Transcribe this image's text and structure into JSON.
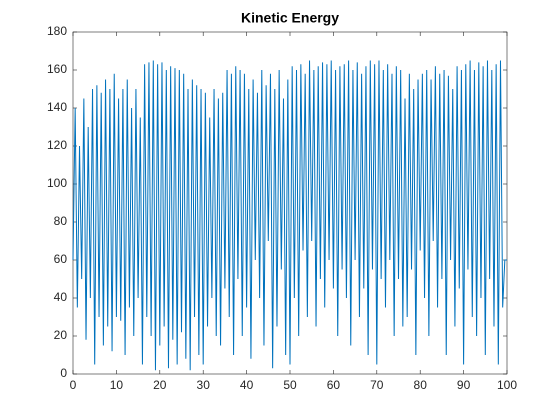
{
  "chart_data": {
    "type": "line",
    "title": "Kinetic Energy",
    "x": [
      0,
      0.5,
      1,
      1.5,
      2,
      2.5,
      3,
      3.5,
      4,
      4.5,
      5,
      5.5,
      6,
      6.5,
      7,
      7.5,
      8,
      8.5,
      9,
      9.5,
      10,
      10.5,
      11,
      11.5,
      12,
      12.5,
      13,
      13.5,
      14,
      14.5,
      15,
      15.5,
      16,
      16.5,
      17,
      17.5,
      18,
      18.5,
      19,
      19.5,
      20,
      20.5,
      21,
      21.5,
      22,
      22.5,
      23,
      23.5,
      24,
      24.5,
      25,
      25.5,
      26,
      26.5,
      27,
      27.5,
      28,
      28.5,
      29,
      29.5,
      30,
      30.5,
      31,
      31.5,
      32,
      32.5,
      33,
      33.5,
      34,
      34.5,
      35,
      35.5,
      36,
      36.5,
      37,
      37.5,
      38,
      38.5,
      39,
      39.5,
      40,
      40.5,
      41,
      41.5,
      42,
      42.5,
      43,
      43.5,
      44,
      44.5,
      45,
      45.5,
      46,
      46.5,
      47,
      47.5,
      48,
      48.5,
      49,
      49.5,
      50,
      50.5,
      51,
      51.5,
      52,
      52.5,
      53,
      53.5,
      54,
      54.5,
      55,
      55.5,
      56,
      56.5,
      57,
      57.5,
      58,
      58.5,
      59,
      59.5,
      60,
      60.5,
      61,
      61.5,
      62,
      62.5,
      63,
      63.5,
      64,
      64.5,
      65,
      65.5,
      66,
      66.5,
      67,
      67.5,
      68,
      68.5,
      69,
      69.5,
      70,
      70.5,
      71,
      71.5,
      72,
      72.5,
      73,
      73.5,
      74,
      74.5,
      75,
      75.5,
      76,
      76.5,
      77,
      77.5,
      78,
      78.5,
      79,
      79.5,
      80,
      80.5,
      81,
      81.5,
      82,
      82.5,
      83,
      83.5,
      84,
      84.5,
      85,
      85.5,
      86,
      86.5,
      87,
      87.5,
      88,
      88.5,
      89,
      89.5,
      90,
      90.5,
      91,
      91.5,
      92,
      92.5,
      93,
      93.5,
      94,
      94.5,
      95,
      95.5,
      96,
      96.5,
      97,
      97.5,
      98,
      98.5,
      99,
      99.5,
      100
    ],
    "series": [
      {
        "color": "#0072bd",
        "values": [
          60,
          140,
          35,
          120,
          50,
          145,
          18,
          130,
          40,
          150,
          5,
          152,
          30,
          148,
          15,
          155,
          25,
          150,
          12,
          158,
          30,
          145,
          28,
          150,
          10,
          155,
          35,
          140,
          20,
          150,
          40,
          135,
          5,
          163,
          30,
          164,
          20,
          165,
          2,
          163,
          15,
          164,
          25,
          160,
          3,
          162,
          18,
          161,
          5,
          160,
          22,
          158,
          8,
          150,
          2,
          155,
          30,
          152,
          10,
          150,
          5,
          148,
          25,
          135,
          40,
          150,
          20,
          145,
          15,
          148,
          45,
          160,
          30,
          158,
          10,
          162,
          50,
          160,
          20,
          158,
          35,
          150,
          8,
          155,
          60,
          148,
          40,
          160,
          15,
          152,
          70,
          158,
          3,
          150,
          25,
          160,
          55,
          145,
          10,
          155,
          5,
          162,
          40,
          160,
          20,
          163,
          65,
          158,
          30,
          165,
          70,
          160,
          25,
          162,
          50,
          164,
          35,
          163,
          60,
          165,
          45,
          160,
          20,
          162,
          55,
          163,
          40,
          165,
          15,
          160,
          60,
          164,
          30,
          158,
          45,
          162,
          10,
          165,
          55,
          163,
          5,
          165,
          50,
          160,
          35,
          163,
          60,
          158,
          20,
          162,
          50,
          160,
          25,
          145,
          30,
          158,
          55,
          150,
          10,
          155,
          65,
          158,
          40,
          160,
          20,
          155,
          70,
          162,
          35,
          158,
          50,
          160,
          10,
          157,
          60,
          150,
          25,
          162,
          45,
          160,
          5,
          163,
          55,
          165,
          30,
          160,
          20,
          164,
          40,
          162,
          10,
          165,
          50,
          160,
          25,
          163,
          5,
          165,
          35,
          60,
          60
        ]
      }
    ],
    "xlim": [
      0,
      100
    ],
    "xticks": [
      0,
      10,
      20,
      30,
      40,
      50,
      60,
      70,
      80,
      90,
      100
    ],
    "ylim": [
      0,
      180
    ],
    "yticks": [
      0,
      20,
      40,
      60,
      80,
      100,
      120,
      140,
      160,
      180
    ]
  }
}
